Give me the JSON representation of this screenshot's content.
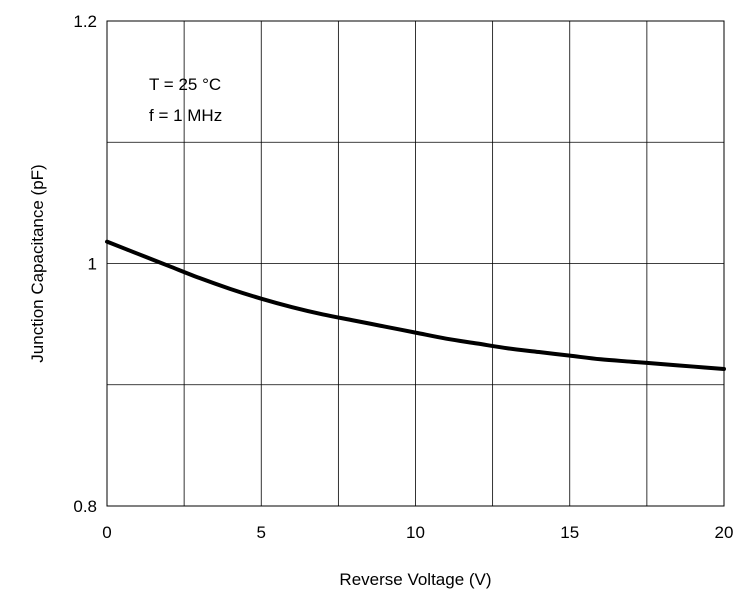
{
  "chart_data": {
    "type": "line",
    "title": "",
    "xlabel": "Reverse Voltage (V)",
    "ylabel": "Junction Capacitance (pF)",
    "xlim": [
      0,
      20
    ],
    "ylim": [
      0.8,
      1.2
    ],
    "x_ticks": [
      0,
      5,
      10,
      15,
      20
    ],
    "x_tick_labels": [
      "0",
      "5",
      "10",
      "15",
      "20"
    ],
    "y_ticks": [
      0.8,
      1.0,
      1.2
    ],
    "y_tick_labels": [
      "0.8",
      "1",
      "1.2"
    ],
    "grid": true,
    "annotations": [
      "T = 25 °C",
      "f = 1 MHz"
    ],
    "series": [
      {
        "color": "#000000",
        "x": [
          0,
          1,
          2,
          3,
          4,
          5,
          6,
          7,
          8,
          9,
          10,
          11,
          12,
          13,
          14,
          15,
          16,
          17,
          18,
          19,
          20
        ],
        "y": [
          1.018,
          1.008,
          0.998,
          0.988,
          0.979,
          0.971,
          0.964,
          0.958,
          0.953,
          0.948,
          0.943,
          0.938,
          0.934,
          0.93,
          0.927,
          0.924,
          0.921,
          0.919,
          0.917,
          0.915,
          0.913
        ]
      }
    ]
  }
}
